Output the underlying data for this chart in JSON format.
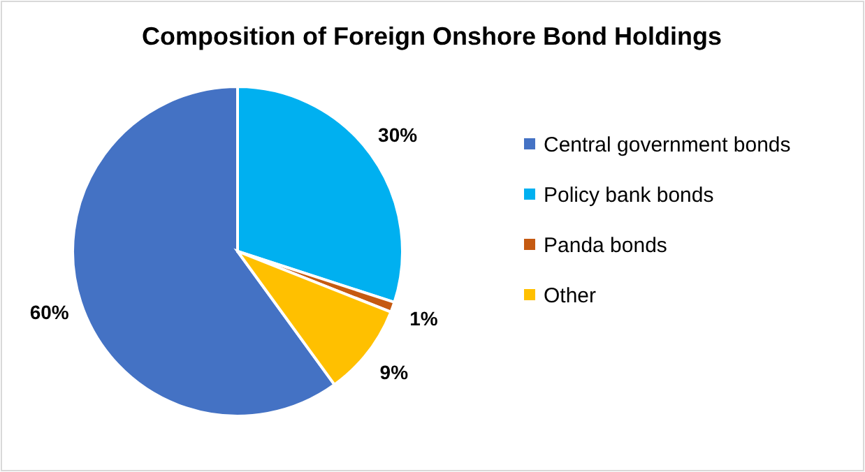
{
  "chart_data": {
    "type": "pie",
    "title": "Composition of Foreign Onshore Bond Holdings",
    "categories": [
      "Central government bonds",
      "Policy bank bonds",
      "Panda bonds",
      "Other"
    ],
    "values": [
      60,
      30,
      1,
      9
    ],
    "colors": [
      "#4472c4",
      "#00b0f0",
      "#c55a11",
      "#ffc000"
    ],
    "value_labels": [
      "60%",
      "30%",
      "1%",
      "9%"
    ],
    "legend": "right"
  }
}
